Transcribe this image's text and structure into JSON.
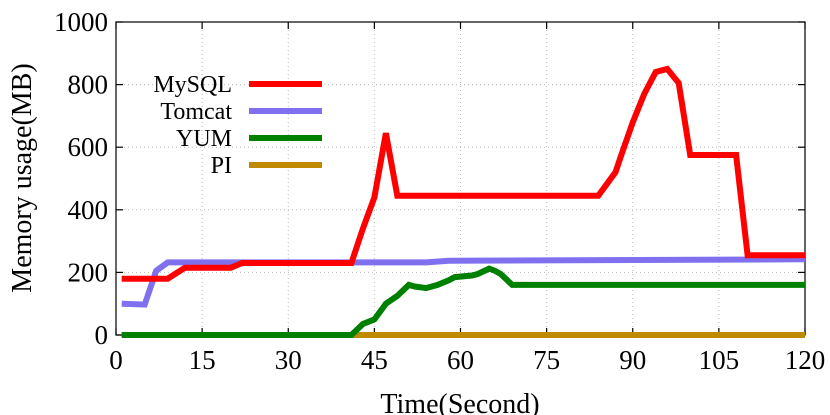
{
  "chart_data": {
    "type": "line",
    "title": "",
    "xlabel": "Time(Second)",
    "ylabel": "Memory usage(MB)",
    "xlim": [
      0,
      120
    ],
    "ylim": [
      0,
      1000
    ],
    "xticks": [
      0,
      15,
      30,
      45,
      60,
      75,
      90,
      105,
      120
    ],
    "yticks": [
      0,
      200,
      400,
      600,
      800,
      1000
    ],
    "grid": true,
    "legend_position": "top-left",
    "series": [
      {
        "name": "MySQL",
        "color": "#ff0000",
        "x": [
          1,
          9,
          12,
          20,
          22,
          41,
          43,
          45,
          47,
          49,
          56,
          60,
          70,
          80,
          84,
          87,
          88,
          90,
          92,
          94,
          96,
          98,
          100,
          108,
          110,
          120
        ],
        "y": [
          180,
          180,
          215,
          215,
          230,
          230,
          340,
          440,
          645,
          445,
          445,
          445,
          445,
          445,
          445,
          520,
          575,
          680,
          770,
          840,
          850,
          805,
          575,
          575,
          255,
          255
        ]
      },
      {
        "name": "Tomcat",
        "color": "#8070f0",
        "x": [
          1,
          5,
          7,
          9,
          20,
          40,
          54,
          58,
          120
        ],
        "y": [
          100,
          97,
          205,
          232,
          232,
          232,
          232,
          237,
          242
        ]
      },
      {
        "name": "YUM",
        "color": "#008000",
        "x": [
          1,
          41,
          43,
          45,
          47,
          49,
          51,
          52,
          54,
          56,
          58,
          59,
          62,
          63,
          65,
          66,
          67,
          69,
          75,
          80,
          120
        ],
        "y": [
          0,
          0,
          35,
          50,
          100,
          125,
          160,
          155,
          150,
          160,
          175,
          185,
          190,
          195,
          212,
          205,
          195,
          160,
          160,
          160,
          160
        ]
      },
      {
        "name": "PI",
        "color": "#c08a00",
        "x": [
          1,
          120
        ],
        "y": [
          0,
          0
        ]
      }
    ]
  }
}
